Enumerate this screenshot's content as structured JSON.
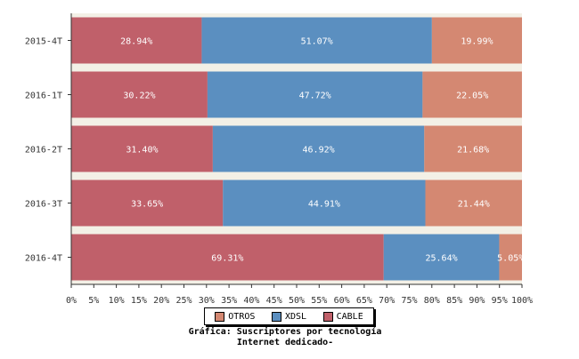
{
  "chart_data": {
    "type": "bar",
    "orientation": "horizontal",
    "stacked": true,
    "percent": true,
    "categories": [
      "2015-4T",
      "2016-1T",
      "2016-2T",
      "2016-3T",
      "2016-4T"
    ],
    "series": [
      {
        "name": "CABLE",
        "color": "#c0606a",
        "values": [
          28.94,
          30.22,
          31.4,
          33.65,
          69.31
        ],
        "labels": [
          "28.94%",
          "30.22%",
          "31.40%",
          "33.65%",
          "69.31%"
        ]
      },
      {
        "name": "XDSL",
        "color": "#5b8fc0",
        "values": [
          51.07,
          47.72,
          46.92,
          44.91,
          25.64
        ],
        "labels": [
          "51.07%",
          "47.72%",
          "46.92%",
          "44.91%",
          "25.64%"
        ]
      },
      {
        "name": "OTROS",
        "color": "#d48872",
        "values": [
          19.99,
          22.05,
          21.68,
          21.44,
          5.05
        ],
        "labels": [
          "19.99%",
          "22.05%",
          "21.68%",
          "21.44%",
          "5.05%"
        ]
      }
    ],
    "xlim": [
      0,
      100
    ],
    "xticks": [
      "0%",
      "5%",
      "10%",
      "15%",
      "20%",
      "25%",
      "30%",
      "35%",
      "40%",
      "45%",
      "50%",
      "55%",
      "60%",
      "65%",
      "70%",
      "75%",
      "80%",
      "85%",
      "90%",
      "95%",
      "100%"
    ],
    "legend_order": [
      "OTROS",
      "XDSL",
      "CABLE"
    ],
    "legend_position": "bottom",
    "title_lines": [
      "Gráfica: Suscriptores por tecnología",
      "Internet dedicado-"
    ],
    "background_color": "#f3f0e6"
  }
}
